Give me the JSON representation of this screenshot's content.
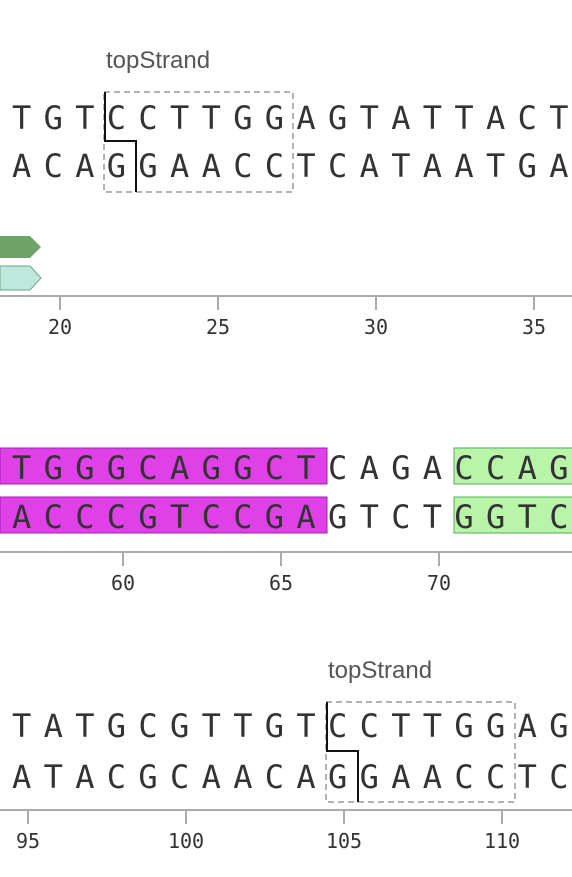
{
  "rows": [
    {
      "site_label": "topStrand",
      "top_strand": "TGTCCTTGGAGTATTACT",
      "bottom_strand": "ACAGGAACCTCATAATGA",
      "ticks": [
        20,
        25,
        30,
        35
      ]
    },
    {
      "top_strand": "TGGGCAGGCTCAGACCAG",
      "bottom_strand": "ACCCGTCCGAGTCTGGTC",
      "ticks": [
        60,
        65,
        70
      ]
    },
    {
      "site_label": "topStrand",
      "top_strand": "TATGCGTTGTCCTTGGAG",
      "bottom_strand": "ATACGCAACAGGAACCTC",
      "ticks": [
        95,
        100,
        105,
        110
      ]
    }
  ],
  "colors": {
    "text": "#333333",
    "axis": "#aaaaaa",
    "site_box": "#999999",
    "feature_dark_green": "#6fa36a",
    "feature_light_teal": "#bfe8dc",
    "highlight_magenta": "#e040e8",
    "highlight_light_green": "#b8f5a8"
  }
}
